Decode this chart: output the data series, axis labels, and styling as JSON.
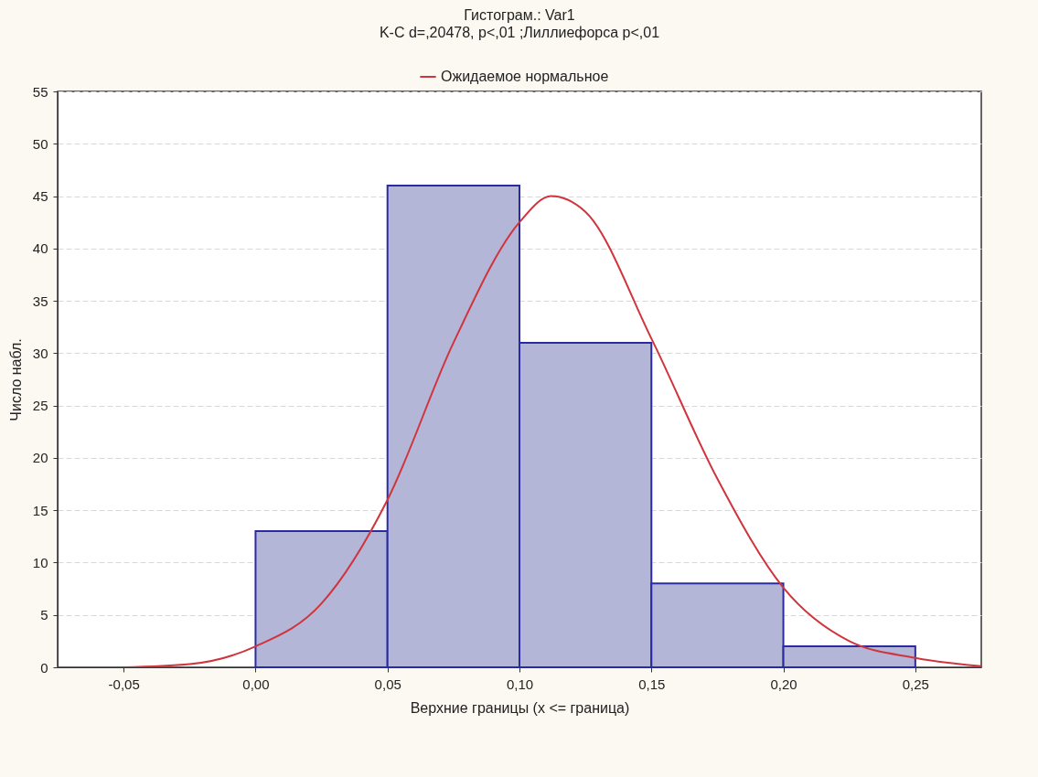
{
  "chart_data": {
    "type": "histogram",
    "title": "Гистограм.: Var1",
    "subtitle": "K-C d=,20478, p<,01 ;Лиллиефорса p<,01",
    "xlabel": "Верхние границы (x <= граница)",
    "ylabel": "Число набл.",
    "xlim": [
      -0.075,
      0.275
    ],
    "ylim": [
      0,
      55
    ],
    "xticks": [
      {
        "value": -0.05,
        "label": "-0,05"
      },
      {
        "value": 0,
        "label": "0,00"
      },
      {
        "value": 0.05,
        "label": "0,05"
      },
      {
        "value": 0.1,
        "label": "0,10"
      },
      {
        "value": 0.15,
        "label": "0,15"
      },
      {
        "value": 0.2,
        "label": "0,20"
      },
      {
        "value": 0.25,
        "label": "0,25"
      }
    ],
    "yticks": [
      0,
      5,
      10,
      15,
      20,
      25,
      30,
      35,
      40,
      45,
      50,
      55
    ],
    "grid": "y",
    "legend": "top",
    "series": [
      {
        "color": "#b4b6d8",
        "bins": [
          0,
          0.05,
          0.1,
          0.15,
          0.2,
          0.25
        ],
        "values": [
          13,
          46,
          31,
          8,
          2
        ]
      },
      {
        "type": "line",
        "name": "Ожидаемое нормальное",
        "color": "#d0343c",
        "x": [
          -0.05,
          -0.025,
          0,
          0.025,
          0.05,
          0.075,
          0.1,
          0.112,
          0.125,
          0.15,
          0.175,
          0.2,
          0.225,
          0.25,
          0.275
        ],
        "values": [
          0,
          0.3,
          2,
          6.1,
          16,
          31,
          42.5,
          45,
          43.5,
          31.4,
          18,
          7.6,
          2.5,
          0.9,
          0.1
        ]
      }
    ]
  }
}
